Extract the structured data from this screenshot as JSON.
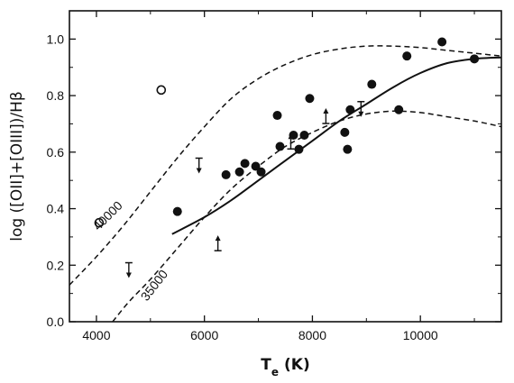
{
  "chart_data": {
    "type": "scatter",
    "title": "",
    "xlabel": "Te (K)",
    "xlabel_parts": {
      "main": "T",
      "sub": "e",
      "unit": "(K)"
    },
    "ylabel": "log ([OII]+[OIII])/Hβ",
    "xlim": [
      3500,
      11500
    ],
    "ylim": [
      0.0,
      1.1
    ],
    "x_ticks": [
      4000,
      6000,
      8000,
      10000
    ],
    "x_tick_labels": [
      "4000",
      "6000",
      "8000",
      "10000"
    ],
    "y_ticks": [
      0.0,
      0.2,
      0.4,
      0.6,
      0.8,
      1.0
    ],
    "y_tick_labels": [
      "0.0",
      "0.2",
      "0.4",
      "0.6",
      "0.8",
      "1.0"
    ],
    "grid": false,
    "series": [
      {
        "marker": "filled-circle",
        "x": [
          5500,
          6400,
          6650,
          6750,
          6950,
          7050,
          7350,
          7400,
          7650,
          7750,
          7850,
          7950,
          8600,
          8650,
          8700,
          9100,
          9600,
          9750,
          10400,
          11000
        ],
        "y": [
          0.39,
          0.52,
          0.53,
          0.56,
          0.55,
          0.53,
          0.73,
          0.62,
          0.66,
          0.61,
          0.66,
          0.79,
          0.67,
          0.61,
          0.75,
          0.84,
          0.75,
          0.94,
          0.99,
          0.93
        ]
      },
      {
        "marker": "open-circle",
        "x": [
          4050,
          5200
        ],
        "y": [
          0.35,
          0.82
        ]
      },
      {
        "marker": "upper-limit-arrow",
        "x": [
          4600,
          5900,
          8900
        ],
        "y": [
          0.18,
          0.55,
          0.75
        ]
      },
      {
        "marker": "lower-limit-arrow",
        "x": [
          6250,
          7600,
          8250
        ],
        "y": [
          0.28,
          0.64,
          0.73
        ]
      },
      {
        "style": "solid",
        "x": [
          5400,
          6000,
          6500,
          7000,
          7500,
          8000,
          8500,
          9000,
          9500,
          10000,
          10500,
          11000,
          11500
        ],
        "y": [
          0.31,
          0.37,
          0.43,
          0.5,
          0.57,
          0.64,
          0.71,
          0.77,
          0.83,
          0.88,
          0.915,
          0.93,
          0.935
        ]
      },
      {
        "label": "40000",
        "style": "dashed",
        "x": [
          3500,
          4000,
          4500,
          5000,
          5500,
          6000,
          6500,
          7000,
          7500,
          8000,
          8500,
          9000,
          9500,
          10000,
          10500,
          11000,
          11500
        ],
        "y": [
          0.13,
          0.23,
          0.34,
          0.46,
          0.58,
          0.69,
          0.79,
          0.86,
          0.91,
          0.945,
          0.965,
          0.975,
          0.975,
          0.97,
          0.96,
          0.95,
          0.94
        ]
      },
      {
        "label": "35000",
        "style": "dashed",
        "x": [
          4300,
          4600,
          5000,
          5500,
          6000,
          6500,
          7000,
          7500,
          8000,
          8500,
          9000,
          9500,
          10000,
          10500,
          11000,
          11500
        ],
        "y": [
          0.0,
          0.07,
          0.15,
          0.26,
          0.37,
          0.47,
          0.55,
          0.62,
          0.67,
          0.71,
          0.735,
          0.745,
          0.74,
          0.725,
          0.71,
          0.69
        ]
      }
    ]
  }
}
